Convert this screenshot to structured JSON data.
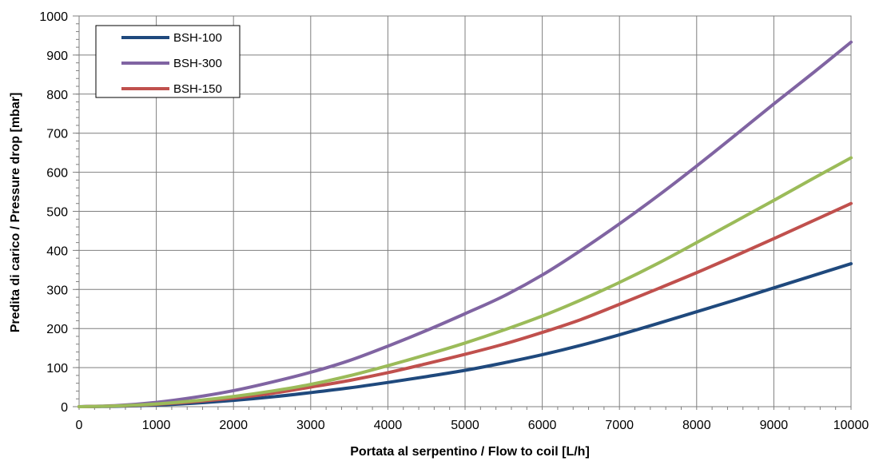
{
  "chart_data": {
    "type": "line",
    "xlabel": "Portata al serpentino / Flow to coil [L/h]",
    "ylabel": "Predita di carico / Pressure drop [mbar]",
    "xlim": [
      0,
      10000
    ],
    "ylim": [
      0,
      1000
    ],
    "xticks": [
      0,
      1000,
      2000,
      3000,
      4000,
      5000,
      6000,
      7000,
      8000,
      9000,
      10000
    ],
    "yticks": [
      0,
      100,
      200,
      300,
      400,
      500,
      600,
      700,
      800,
      900,
      1000
    ],
    "grid": true,
    "legend_position": "top-left",
    "x": [
      0,
      500,
      1000,
      1500,
      2000,
      2500,
      3000,
      3500,
      4000,
      4500,
      5000,
      5500,
      6000,
      6500,
      7000,
      7500,
      8000,
      8500,
      9000,
      9500,
      10000
    ],
    "series": [
      {
        "name": "BSH-100",
        "color": "#1f497d",
        "values": [
          0,
          1,
          4,
          9,
          16,
          25,
          36,
          48,
          62,
          77,
          93,
          112,
          133,
          157,
          184,
          213,
          243,
          273,
          304,
          335,
          366
        ]
      },
      {
        "name": "BSH-300",
        "color": "#8064a2",
        "values": [
          0,
          3,
          11,
          24,
          41,
          63,
          88,
          118,
          155,
          195,
          238,
          283,
          337,
          400,
          468,
          540,
          616,
          695,
          775,
          853,
          933
        ]
      },
      {
        "name": "BSH-150",
        "color": "#c0504d",
        "values": [
          0,
          2,
          6,
          13,
          22,
          34,
          50,
          67,
          87,
          110,
          134,
          160,
          190,
          223,
          262,
          302,
          343,
          386,
          430,
          475,
          520
        ]
      },
      {
        "name": "",
        "color": "#9bbb59",
        "values": [
          0,
          2,
          7,
          15,
          26,
          40,
          57,
          79,
          105,
          133,
          163,
          196,
          232,
          273,
          318,
          367,
          420,
          474,
          528,
          583,
          637
        ]
      }
    ],
    "legend": [
      "BSH-100",
      "BSH-300",
      "BSH-150"
    ]
  }
}
